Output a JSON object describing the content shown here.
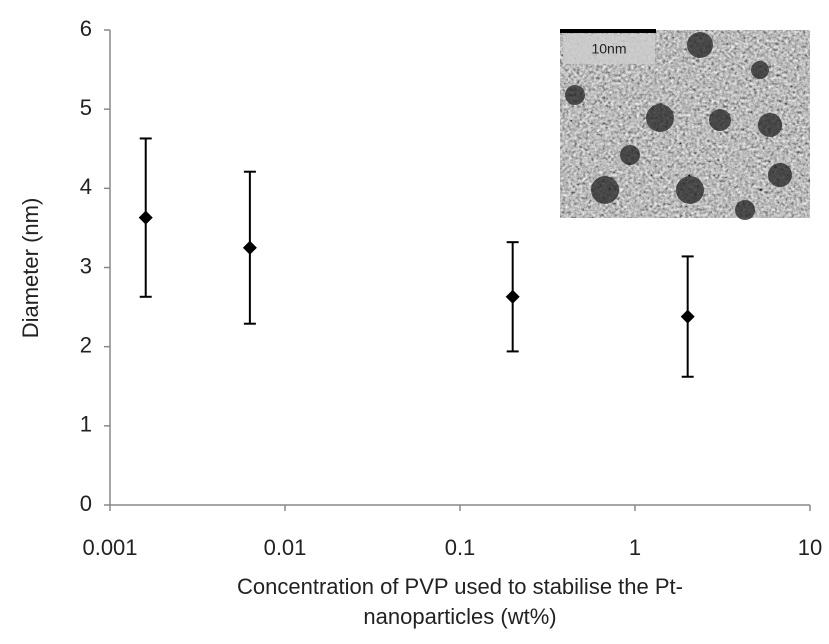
{
  "chart_data": {
    "type": "scatter",
    "x_label": "Concentration of PVP used to stabilise the Pt-\nnanoparticles  (wt%)",
    "y_label": "Diameter (nm)",
    "inset_label": "10nm",
    "x_log": true,
    "xlim": [
      0.001,
      10
    ],
    "xticks": [
      0.001,
      0.01,
      0.1,
      1,
      10
    ],
    "ylim": [
      0,
      6
    ],
    "yticks": [
      0,
      1,
      2,
      3,
      4,
      5,
      6
    ],
    "grid": false,
    "series": [
      {
        "color": "#000000",
        "x": [
          0.0016,
          0.0063,
          0.2,
          2.0
        ],
        "values": [
          3.63,
          3.25,
          2.63,
          2.38
        ],
        "errors": [
          1.0,
          0.96,
          0.69,
          0.76
        ]
      }
    ]
  }
}
